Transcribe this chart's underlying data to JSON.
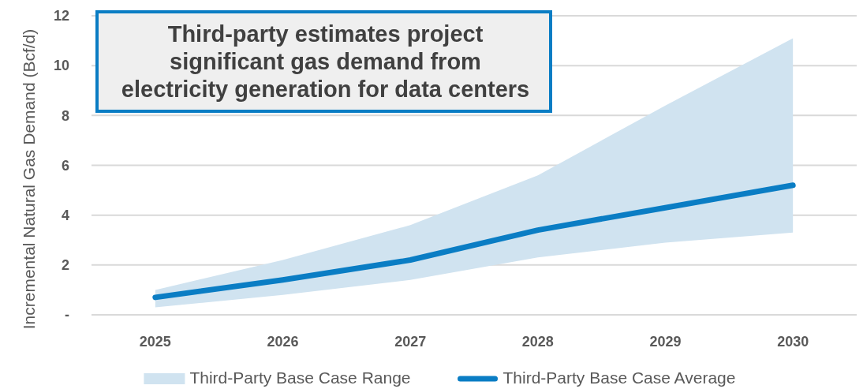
{
  "chart_data": {
    "type": "line",
    "title": "Third-party estimates project significant gas demand from electricity generation for data centers",
    "ylabel": "Incremental Natural Gas Demand (Bcf/d)",
    "categories": [
      "2025",
      "2026",
      "2027",
      "2028",
      "2029",
      "2030"
    ],
    "series": [
      {
        "name": "Third-Party Base Case Range",
        "type": "area",
        "color": "#d0e3f0",
        "values": [
          null,
          null,
          null,
          null,
          null,
          null
        ],
        "lower": [
          0.3,
          0.8,
          1.4,
          2.3,
          2.9,
          3.3
        ],
        "upper": [
          1.0,
          2.2,
          3.6,
          5.6,
          8.4,
          11.1
        ]
      },
      {
        "name": "Third-Party Base Case Average",
        "type": "line",
        "color": "#0a7dc4",
        "values": [
          0.7,
          1.4,
          2.2,
          3.4,
          4.3,
          5.2
        ]
      }
    ],
    "ylim": [
      0,
      12
    ],
    "yticks": [
      {
        "value": 0,
        "label": "-"
      },
      2,
      4,
      6,
      8,
      10,
      12
    ],
    "grid": "y",
    "legend": "bottom",
    "line_style": "solid"
  }
}
